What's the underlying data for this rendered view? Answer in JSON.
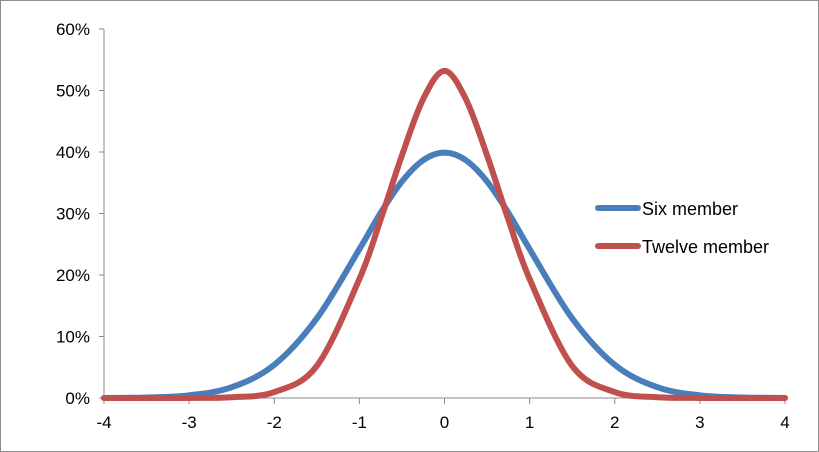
{
  "chart_data": {
    "type": "line",
    "title": "",
    "xlabel": "",
    "ylabel": "",
    "xlim": [
      -4,
      4
    ],
    "ylim": [
      0,
      0.6
    ],
    "x_ticks": [
      -4,
      -3,
      -2,
      -1,
      0,
      1,
      2,
      3,
      4
    ],
    "x_tick_labels": [
      "-4",
      "-3",
      "-2",
      "-1",
      "0",
      "1",
      "2",
      "3",
      "4"
    ],
    "y_ticks": [
      0,
      0.1,
      0.2,
      0.3,
      0.4,
      0.5,
      0.6
    ],
    "y_tick_labels": [
      "0%",
      "10%",
      "20%",
      "30%",
      "40%",
      "50%",
      "60%"
    ],
    "grid": false,
    "legend_position": "right",
    "x": [
      -4,
      -3.5,
      -3,
      -2.5,
      -2,
      -1.5,
      -1,
      -0.75,
      -0.5,
      -0.25,
      0,
      0.25,
      0.5,
      0.75,
      1,
      1.5,
      2,
      2.5,
      3,
      3.5,
      4
    ],
    "series": [
      {
        "name": "Six member",
        "color": "#4a7ebb",
        "values": [
          0.0001,
          0.0009,
          0.0044,
          0.0175,
          0.054,
          0.1295,
          0.242,
          0.3011,
          0.3521,
          0.3867,
          0.3989,
          0.3867,
          0.3521,
          0.3011,
          0.242,
          0.1295,
          0.054,
          0.0175,
          0.0044,
          0.0009,
          0.0001
        ]
      },
      {
        "name": "Twelve member",
        "color": "#c0504d",
        "values": [
          0.0,
          0.0,
          0.0001,
          0.0012,
          0.0096,
          0.0521,
          0.1935,
          0.2902,
          0.3945,
          0.4863,
          0.532,
          0.4863,
          0.3945,
          0.2902,
          0.1935,
          0.0521,
          0.0096,
          0.0012,
          0.0001,
          0.0,
          0.0
        ]
      }
    ]
  }
}
